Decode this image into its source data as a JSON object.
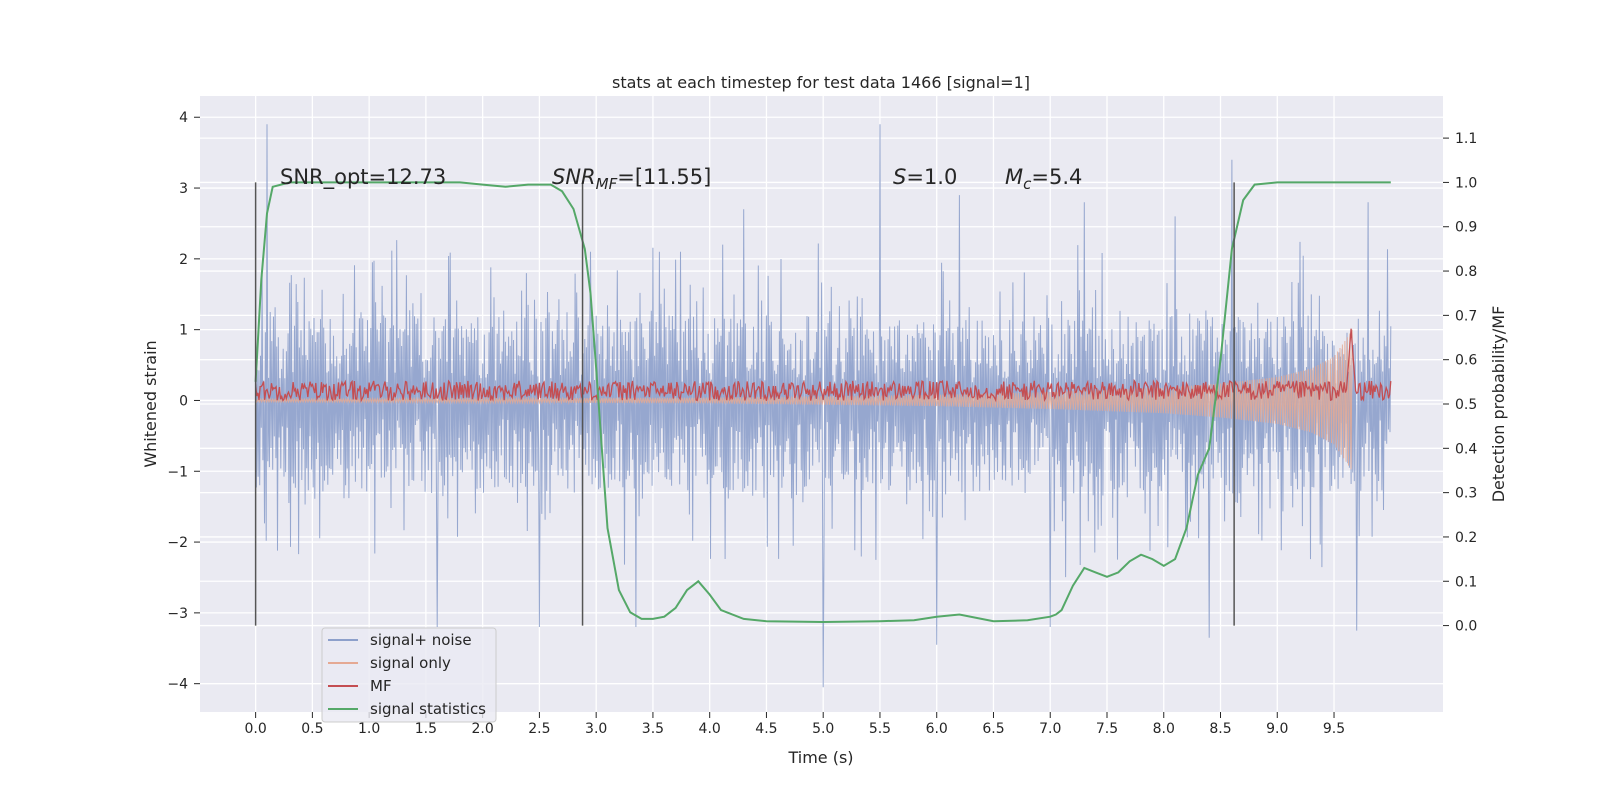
{
  "chart_data": {
    "type": "line",
    "title": "stats at each timestep for test data 1466 [signal=1]",
    "xlabel": "Time (s)",
    "ylabel_left": "Whitened strain",
    "ylabel_right": "Detection probability/MF",
    "xlim": [
      -0.49,
      10.46
    ],
    "ylim_left": [
      -4.4,
      4.3
    ],
    "ylim_right": [
      -0.195,
      1.195
    ],
    "x_ticks": [
      "0.0",
      "0.5",
      "1.0",
      "1.5",
      "2.0",
      "2.5",
      "3.0",
      "3.5",
      "4.0",
      "4.5",
      "5.0",
      "5.5",
      "6.0",
      "6.5",
      "7.0",
      "7.5",
      "8.0",
      "8.5",
      "9.0",
      "9.5"
    ],
    "y_left_ticks": [
      "4",
      "3",
      "2",
      "1",
      "0",
      "−1",
      "−2",
      "−3",
      "−4"
    ],
    "y_right_ticks": [
      "1.1",
      "1.0",
      "0.9",
      "0.8",
      "0.7",
      "0.6",
      "0.5",
      "0.4",
      "0.3",
      "0.2",
      "0.1",
      "0.0"
    ],
    "grid": true,
    "legend_position": "lower-left",
    "annotations": {
      "snr_opt": "SNR_opt=12.73",
      "snr_mf_base": "SNR",
      "snr_mf_sub": "MF",
      "snr_mf_value": "=[11.55]",
      "s_base": "S",
      "s_value": "=1.0",
      "mc_base": "M",
      "mc_sub": "c",
      "mc_value": "=5.4"
    },
    "vlines": [
      0.0,
      2.88,
      8.62
    ],
    "series": [
      {
        "name": "signal+ noise",
        "axis": "left",
        "color": "#8da0cb",
        "x_range": [
          0.0,
          10.0
        ],
        "band": [
          -1.3,
          1.2
        ],
        "peaks": [
          [
            0.1,
            3.9
          ],
          [
            1.6,
            2.9
          ],
          [
            2.95,
            2.1
          ],
          [
            4.3,
            2.7
          ],
          [
            5.5,
            3.9
          ],
          [
            6.2,
            2.9
          ],
          [
            7.0,
            2.8
          ],
          [
            7.3,
            2.8
          ],
          [
            8.1,
            2.6
          ],
          [
            8.6,
            3.4
          ],
          [
            9.8,
            2.8
          ]
        ],
        "troughs": [
          [
            1.6,
            -3.2
          ],
          [
            2.5,
            -3.2
          ],
          [
            3.35,
            -3.2
          ],
          [
            5.0,
            -4.05
          ],
          [
            6.0,
            -3.45
          ],
          [
            7.0,
            -3.2
          ],
          [
            8.4,
            -3.35
          ],
          [
            9.7,
            -3.25
          ]
        ]
      },
      {
        "name": "signal only",
        "axis": "left",
        "color": "#e5a993",
        "x_range": [
          0.0,
          9.66
        ],
        "envelope": [
          [
            0.0,
            0.02
          ],
          [
            2.0,
            0.03
          ],
          [
            4.0,
            0.04
          ],
          [
            5.0,
            0.06
          ],
          [
            6.0,
            0.08
          ],
          [
            7.0,
            0.12
          ],
          [
            8.0,
            0.18
          ],
          [
            8.5,
            0.24
          ],
          [
            9.0,
            0.33
          ],
          [
            9.3,
            0.45
          ],
          [
            9.5,
            0.62
          ],
          [
            9.6,
            0.85
          ],
          [
            9.66,
            1.0
          ]
        ]
      },
      {
        "name": "MF",
        "axis": "right",
        "color": "#c44e52",
        "x_range": [
          0.0,
          10.0
        ],
        "baseline": 0.53,
        "spike": [
          9.65,
          0.67
        ]
      },
      {
        "name": "signal statistics",
        "axis": "right",
        "color": "#55a868",
        "x": [
          0.0,
          0.05,
          0.1,
          0.15,
          0.3,
          0.6,
          1.0,
          1.5,
          1.8,
          2.0,
          2.2,
          2.4,
          2.6,
          2.7,
          2.8,
          2.9,
          2.95,
          3.0,
          3.05,
          3.1,
          3.2,
          3.3,
          3.4,
          3.5,
          3.6,
          3.7,
          3.8,
          3.9,
          4.0,
          4.1,
          4.3,
          4.5,
          5.0,
          5.5,
          5.8,
          6.0,
          6.2,
          6.5,
          6.8,
          7.0,
          7.05,
          7.1,
          7.2,
          7.3,
          7.4,
          7.5,
          7.6,
          7.7,
          7.8,
          7.9,
          8.0,
          8.1,
          8.2,
          8.3,
          8.4,
          8.5,
          8.6,
          8.7,
          8.8,
          9.0,
          9.5,
          10.0
        ],
        "y": [
          0.55,
          0.78,
          0.93,
          0.99,
          1.0,
          1.0,
          1.0,
          1.0,
          1.0,
          0.995,
          0.99,
          0.995,
          0.995,
          0.98,
          0.94,
          0.85,
          0.75,
          0.58,
          0.4,
          0.22,
          0.08,
          0.03,
          0.015,
          0.015,
          0.02,
          0.04,
          0.08,
          0.1,
          0.07,
          0.035,
          0.015,
          0.01,
          0.008,
          0.01,
          0.012,
          0.02,
          0.025,
          0.01,
          0.012,
          0.02,
          0.025,
          0.035,
          0.09,
          0.13,
          0.12,
          0.11,
          0.12,
          0.145,
          0.16,
          0.15,
          0.135,
          0.15,
          0.22,
          0.34,
          0.4,
          0.6,
          0.85,
          0.96,
          0.995,
          1.0,
          1.0,
          1.0
        ]
      }
    ]
  }
}
